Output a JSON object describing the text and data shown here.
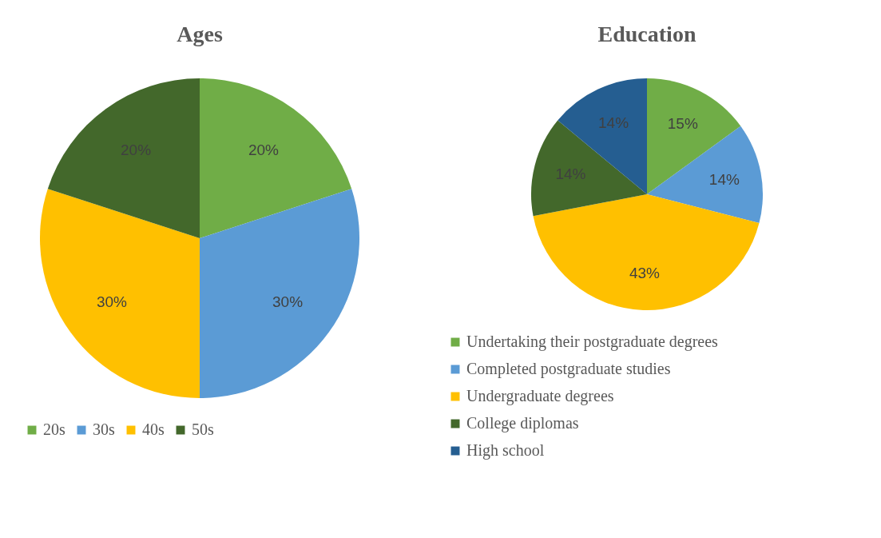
{
  "chart_data": [
    {
      "type": "pie",
      "title": "Ages",
      "categories": [
        "20s",
        "30s",
        "40s",
        "50s"
      ],
      "values": [
        20,
        30,
        30,
        20
      ],
      "colors": [
        "#70ad47",
        "#5b9bd5",
        "#ffc000",
        "#43682b"
      ],
      "value_labels": [
        "20%",
        "30%",
        "30%",
        "20%"
      ],
      "legend": "bottom"
    },
    {
      "type": "pie",
      "title": "Education",
      "categories": [
        "Undertaking their postgraduate degrees",
        "Completed postgraduate studies",
        " Undergraduate degrees",
        "College diplomas",
        "High school"
      ],
      "values": [
        15,
        14,
        43,
        14,
        14
      ],
      "colors": [
        "#70ad47",
        "#5b9bd5",
        "#ffc000",
        "#43682b",
        "#255e91"
      ],
      "value_labels": [
        "15%",
        "14%",
        "43%",
        "14%",
        "14%"
      ],
      "legend": "bottom"
    }
  ]
}
